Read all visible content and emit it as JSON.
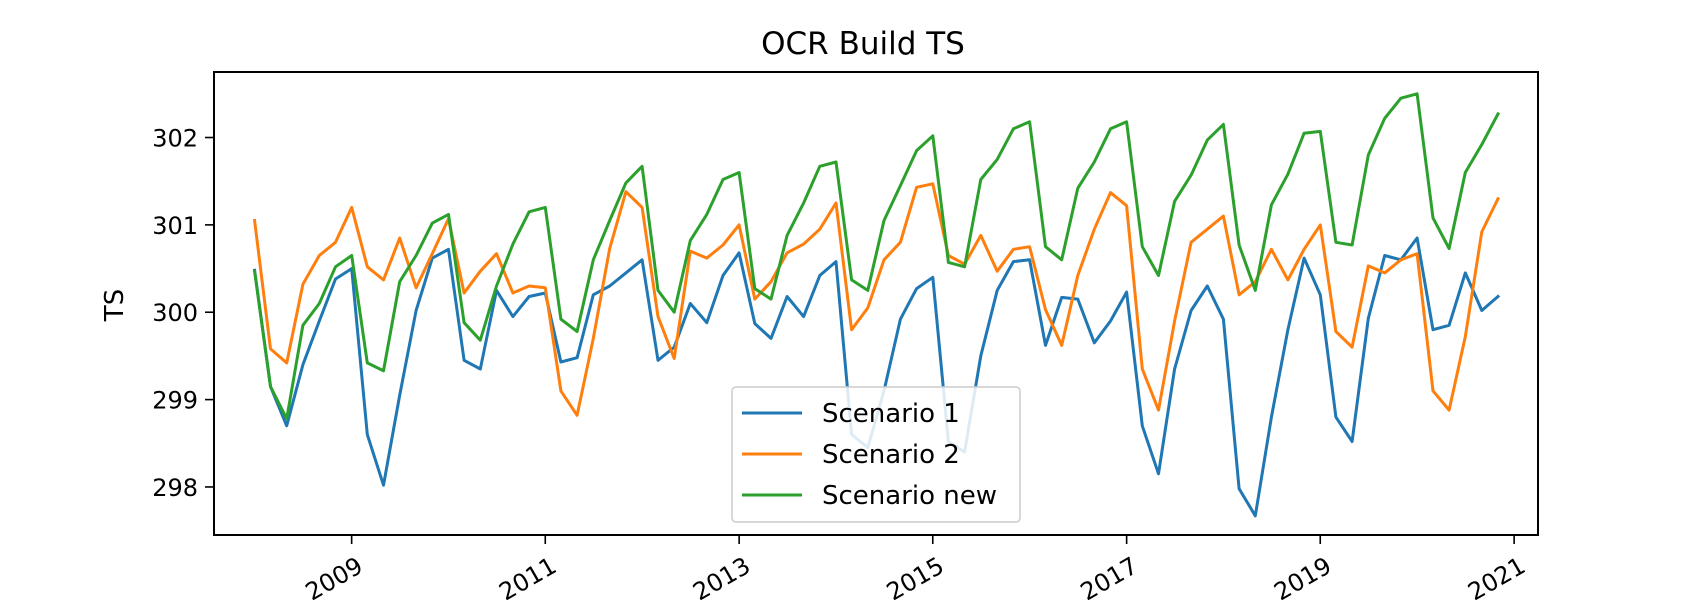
{
  "chart_data": {
    "type": "line",
    "title": "OCR Build TS",
    "xlabel": "",
    "ylabel": "TS",
    "x_axis": {
      "type": "date",
      "range": [
        "2007-08-01",
        "2021-04-01"
      ],
      "tick_labels": [
        "2009",
        "2011",
        "2013",
        "2015",
        "2017",
        "2019",
        "2021"
      ],
      "tick_values": [
        "2009-01-01",
        "2011-01-01",
        "2013-01-01",
        "2015-01-01",
        "2017-01-01",
        "2019-01-01",
        "2021-01-01"
      ]
    },
    "y_axis": {
      "range": [
        297.45,
        302.75
      ],
      "ticks": [
        298,
        299,
        300,
        301,
        302
      ],
      "tick_labels": [
        "298",
        "299",
        "300",
        "301",
        "302"
      ]
    },
    "grid": false,
    "legend": {
      "placement": "lower-center"
    },
    "x": [
      "2008-01",
      "2008-03",
      "2008-05",
      "2008-07",
      "2008-09",
      "2008-11",
      "2009-01",
      "2009-03",
      "2009-05",
      "2009-07",
      "2009-09",
      "2009-11",
      "2010-01",
      "2010-03",
      "2010-05",
      "2010-07",
      "2010-09",
      "2010-11",
      "2011-01",
      "2011-03",
      "2011-05",
      "2011-07",
      "2011-09",
      "2011-11",
      "2012-01",
      "2012-03",
      "2012-05",
      "2012-07",
      "2012-09",
      "2012-11",
      "2013-01",
      "2013-03",
      "2013-05",
      "2013-07",
      "2013-09",
      "2013-11",
      "2014-01",
      "2014-03",
      "2014-05",
      "2014-07",
      "2014-09",
      "2014-11",
      "2015-01",
      "2015-03",
      "2015-05",
      "2015-07",
      "2015-09",
      "2015-11",
      "2016-01",
      "2016-03",
      "2016-05",
      "2016-07",
      "2016-09",
      "2016-11",
      "2017-01",
      "2017-03",
      "2017-05",
      "2017-07",
      "2017-09",
      "2017-11",
      "2018-01",
      "2018-03",
      "2018-05",
      "2018-07",
      "2018-09",
      "2018-11",
      "2019-01",
      "2019-03",
      "2019-05",
      "2019-07",
      "2019-09",
      "2019-11",
      "2020-01",
      "2020-03",
      "2020-05",
      "2020-07",
      "2020-09",
      "2020-11"
    ],
    "series": [
      {
        "name": "Scenario 1",
        "color": "#1f77b4",
        "values": [
          300.48,
          299.15,
          298.7,
          299.4,
          299.9,
          300.38,
          300.5,
          298.6,
          298.02,
          299.05,
          300.02,
          300.62,
          300.72,
          299.45,
          299.35,
          300.25,
          299.95,
          300.18,
          300.22,
          299.43,
          299.48,
          300.2,
          300.3,
          300.45,
          300.6,
          299.45,
          299.6,
          300.1,
          299.88,
          300.42,
          300.68,
          299.87,
          299.7,
          300.18,
          299.95,
          300.42,
          300.58,
          298.6,
          298.45,
          299.1,
          299.92,
          300.27,
          300.4,
          298.52,
          298.4,
          299.5,
          300.25,
          300.58,
          300.6,
          299.62,
          300.17,
          300.15,
          299.65,
          299.9,
          300.23,
          298.7,
          298.15,
          299.35,
          300.02,
          300.3,
          299.92,
          297.98,
          297.67,
          298.8,
          299.8,
          300.62,
          300.2,
          298.8,
          298.52,
          299.93,
          300.65,
          300.6,
          300.85,
          299.8,
          299.85,
          300.45,
          300.02,
          300.18
        ]
      },
      {
        "name": "Scenario 2",
        "color": "#ff7f0e",
        "values": [
          301.05,
          299.58,
          299.42,
          300.32,
          300.65,
          300.8,
          301.2,
          300.52,
          300.37,
          300.85,
          300.28,
          300.67,
          301.07,
          300.22,
          300.47,
          300.67,
          300.22,
          300.3,
          300.28,
          299.1,
          298.82,
          299.7,
          300.73,
          301.38,
          301.2,
          299.95,
          299.47,
          300.7,
          300.62,
          300.77,
          301.0,
          300.15,
          300.35,
          300.68,
          300.78,
          300.95,
          301.25,
          299.8,
          300.05,
          300.6,
          300.8,
          301.43,
          301.47,
          300.65,
          300.55,
          300.88,
          300.47,
          300.72,
          300.75,
          300.03,
          299.62,
          300.42,
          300.95,
          301.37,
          301.22,
          299.35,
          298.88,
          299.9,
          300.8,
          300.95,
          301.1,
          300.2,
          300.35,
          300.72,
          300.37,
          300.72,
          301.0,
          299.78,
          299.6,
          300.53,
          300.45,
          300.6,
          300.67,
          299.1,
          298.88,
          299.72,
          300.92,
          301.3
        ]
      },
      {
        "name": "Scenario new",
        "color": "#2ca02c",
        "values": [
          300.47,
          299.15,
          298.78,
          299.85,
          300.1,
          300.52,
          300.65,
          299.42,
          299.33,
          300.35,
          300.65,
          301.02,
          301.12,
          299.88,
          299.68,
          300.3,
          300.78,
          301.15,
          301.2,
          299.92,
          299.78,
          300.6,
          301.05,
          301.48,
          301.67,
          300.25,
          300.0,
          300.82,
          301.12,
          301.52,
          301.6,
          300.27,
          300.15,
          300.88,
          301.25,
          301.67,
          301.72,
          300.37,
          300.25,
          301.05,
          301.45,
          301.85,
          302.02,
          300.57,
          300.52,
          301.52,
          301.75,
          302.1,
          302.18,
          300.75,
          300.6,
          301.42,
          301.72,
          302.1,
          302.18,
          300.75,
          300.42,
          301.27,
          301.57,
          301.97,
          302.15,
          300.77,
          300.25,
          301.23,
          301.58,
          302.05,
          302.07,
          300.8,
          300.77,
          301.8,
          302.22,
          302.45,
          302.5,
          301.08,
          300.73,
          301.6,
          301.92,
          302.27
        ]
      }
    ]
  }
}
